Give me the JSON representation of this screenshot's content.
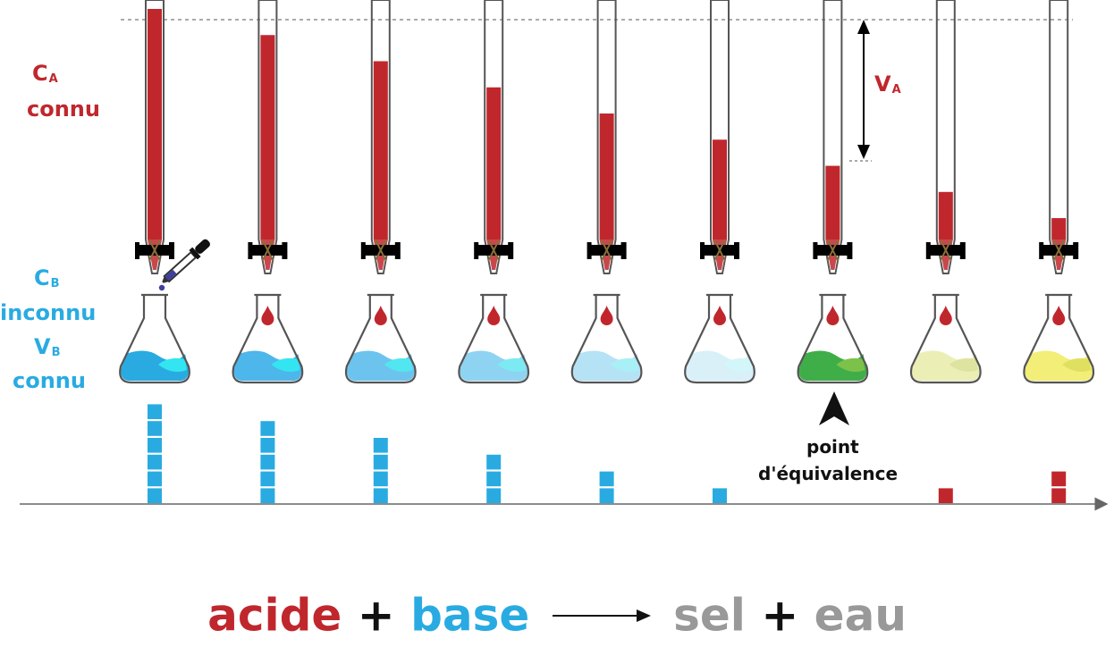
{
  "labels": {
    "ca_symbol": "C",
    "ca_sub": "A",
    "ca_status": "connu",
    "cb_symbol": "C",
    "cb_sub": "B",
    "cb_status": "inconnu",
    "vb_symbol": "V",
    "vb_sub": "B",
    "vb_status": "connu",
    "va_symbol": "V",
    "va_sub": "A",
    "equivalence_line1": "point",
    "equivalence_line2": "d'équivalence"
  },
  "equation": {
    "acid": "acide",
    "plus1": "+",
    "base": "base",
    "salt": "sel",
    "plus2": "+",
    "water": "eau"
  },
  "colors": {
    "acid": "#c0272d",
    "base": "#29abe2",
    "product": "#999999"
  },
  "chart_data": {
    "type": "bar",
    "steps": 9,
    "burette_fill_fraction": [
      0.97,
      0.86,
      0.75,
      0.64,
      0.53,
      0.42,
      0.31,
      0.2,
      0.09
    ],
    "flask_liquid_colors": [
      "#29abe2",
      "#4db6ea",
      "#6cc4ee",
      "#8fd3f2",
      "#b6e2f5",
      "#d9f0f9",
      "#3fae49",
      "#ecefb5",
      "#f2ee78"
    ],
    "flask_wave_colors": [
      "#33e5f0",
      "#33e5f0",
      "#52e6f1",
      "#7deaf3",
      "#a8f0f6",
      "#d2f6fa",
      "#7cc24a",
      "#dfe3a0",
      "#e0e060"
    ],
    "base_blocks": [
      6,
      5,
      4,
      3,
      2,
      1,
      0,
      0,
      0
    ],
    "acid_blocks": [
      0,
      0,
      0,
      0,
      0,
      0,
      0,
      1,
      2
    ],
    "equivalence_index": 6
  }
}
